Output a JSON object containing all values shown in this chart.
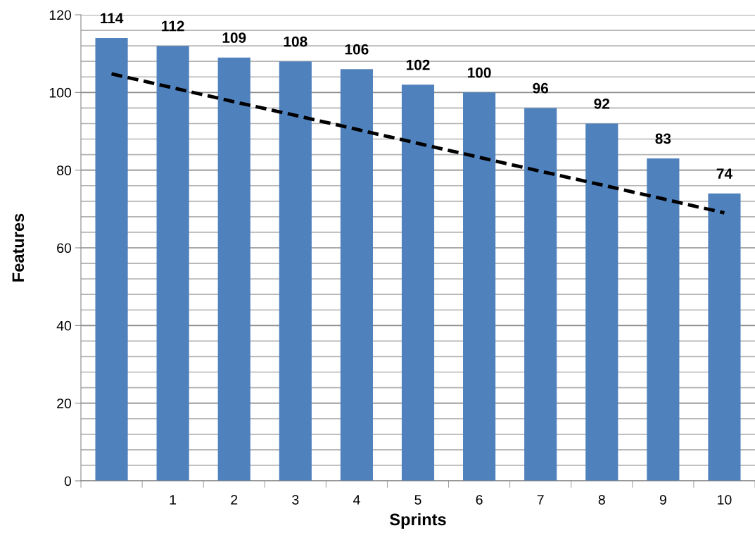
{
  "chart_data": {
    "type": "bar",
    "xlabel": "Sprints",
    "ylabel": "Features",
    "categories": [
      null,
      "1",
      "2",
      "3",
      "4",
      "5",
      "6",
      "7",
      "8",
      "9",
      "10"
    ],
    "series": [
      {
        "color": "#4f81bd",
        "values": [
          114,
          112,
          109,
          108,
          106,
          102,
          100,
          96,
          92,
          83,
          74
        ],
        "value_labels": [
          "114",
          "112",
          "109",
          "108",
          "106",
          "102",
          "100",
          "96",
          "92",
          "83",
          "74"
        ]
      },
      {
        "type": "line",
        "color": "#000000",
        "line_style": "dashed",
        "values": [
          104.8,
          101.2,
          97.6,
          94.1,
          90.5,
          86.9,
          83.3,
          79.7,
          76.2,
          72.6,
          69.0
        ]
      }
    ],
    "ylim": [
      0,
      120
    ],
    "yticks": [
      0,
      {
        "value": 4,
        "label": null
      },
      {
        "value": 8,
        "label": null
      },
      {
        "value": 12,
        "label": null
      },
      {
        "value": 16,
        "label": null
      },
      20,
      {
        "value": 24,
        "label": null
      },
      {
        "value": 28,
        "label": null
      },
      {
        "value": 32,
        "label": null
      },
      {
        "value": 36,
        "label": null
      },
      40,
      {
        "value": 44,
        "label": null
      },
      {
        "value": 48,
        "label": null
      },
      {
        "value": 52,
        "label": null
      },
      {
        "value": 56,
        "label": null
      },
      60,
      {
        "value": 64,
        "label": null
      },
      {
        "value": 68,
        "label": null
      },
      {
        "value": 72,
        "label": null
      },
      {
        "value": 76,
        "label": null
      },
      80,
      {
        "value": 84,
        "label": null
      },
      {
        "value": 88,
        "label": null
      },
      {
        "value": 92,
        "label": null
      },
      {
        "value": 96,
        "label": null
      },
      100,
      {
        "value": 104,
        "label": null
      },
      {
        "value": 108,
        "label": null
      },
      {
        "value": 112,
        "label": null
      },
      {
        "value": 116,
        "label": null
      },
      120
    ],
    "grid": "y",
    "legend": false
  }
}
